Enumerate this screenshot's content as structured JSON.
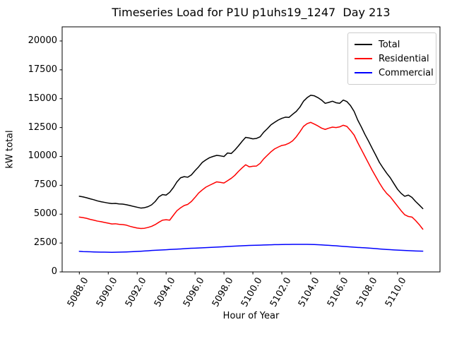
{
  "chart_data": {
    "type": "line",
    "title": "Timeseries Load for P1U p1uhs19_1247  Day 213",
    "xlabel": "Hour of Year",
    "ylabel": "kW total",
    "grid": false,
    "legend_position": "upper right",
    "xlim": [
      5086.8125,
      5112.9375
    ],
    "ylim": [
      0,
      21223
    ],
    "x_ticks": [
      5088,
      5090,
      5092,
      5094,
      5096,
      5098,
      5100,
      5102,
      5104,
      5106,
      5108,
      5110
    ],
    "x_tick_labels": [
      "5088.0",
      "5090.0",
      "5092.0",
      "5094.0",
      "5096.0",
      "5098.0",
      "5100.0",
      "5102.0",
      "5104.0",
      "5106.0",
      "5108.0",
      "5110.0"
    ],
    "y_ticks": [
      0,
      2500,
      5000,
      7500,
      10000,
      12500,
      15000,
      17500,
      20000
    ],
    "y_tick_labels": [
      "0",
      "2500",
      "5000",
      "7500",
      "10000",
      "12500",
      "15000",
      "17500",
      "20000"
    ],
    "x_start": 5088.0,
    "x_step": 0.25,
    "x_end": 5111.75,
    "series": [
      {
        "name": "Total",
        "color": "#000000",
        "values": [
          6550,
          6500,
          6420,
          6330,
          6250,
          6150,
          6080,
          6020,
          5960,
          5920,
          5930,
          5890,
          5870,
          5820,
          5750,
          5670,
          5600,
          5530,
          5560,
          5650,
          5810,
          6100,
          6500,
          6700,
          6650,
          6900,
          7300,
          7800,
          8150,
          8250,
          8200,
          8400,
          8770,
          9100,
          9480,
          9700,
          9890,
          10000,
          10090,
          10050,
          9990,
          10300,
          10250,
          10550,
          10910,
          11300,
          11650,
          11600,
          11520,
          11560,
          11700,
          12100,
          12400,
          12740,
          12950,
          13150,
          13300,
          13400,
          13380,
          13650,
          13900,
          14270,
          14780,
          15090,
          15300,
          15250,
          15090,
          14880,
          14600,
          14680,
          14780,
          14650,
          14600,
          14880,
          14750,
          14400,
          13900,
          13150,
          12550,
          11900,
          11320,
          10700,
          10100,
          9480,
          9000,
          8550,
          8150,
          7650,
          7160,
          6800,
          6550,
          6650,
          6450,
          6100,
          5800,
          5480
        ]
      },
      {
        "name": "Residential",
        "color": "#ff0000",
        "values": [
          4750,
          4700,
          4640,
          4550,
          4480,
          4400,
          4350,
          4280,
          4220,
          4150,
          4170,
          4120,
          4100,
          4050,
          3950,
          3870,
          3800,
          3760,
          3780,
          3850,
          3950,
          4100,
          4300,
          4480,
          4520,
          4480,
          4900,
          5300,
          5550,
          5750,
          5850,
          6100,
          6450,
          6830,
          7100,
          7340,
          7500,
          7650,
          7800,
          7750,
          7700,
          7900,
          8100,
          8360,
          8700,
          9000,
          9280,
          9100,
          9150,
          9170,
          9400,
          9790,
          10100,
          10400,
          10650,
          10810,
          10950,
          11010,
          11150,
          11350,
          11700,
          12130,
          12600,
          12840,
          12950,
          12800,
          12640,
          12450,
          12340,
          12450,
          12540,
          12500,
          12560,
          12700,
          12600,
          12250,
          11850,
          11200,
          10600,
          10000,
          9400,
          8800,
          8250,
          7700,
          7200,
          6800,
          6500,
          6100,
          5700,
          5300,
          4950,
          4800,
          4750,
          4450,
          4100,
          3700
        ]
      },
      {
        "name": "Commercial",
        "color": "#0000ff",
        "values": [
          1780,
          1760,
          1750,
          1740,
          1730,
          1720,
          1715,
          1710,
          1705,
          1700,
          1705,
          1710,
          1720,
          1730,
          1740,
          1755,
          1770,
          1790,
          1810,
          1830,
          1855,
          1870,
          1885,
          1900,
          1920,
          1940,
          1955,
          1970,
          1990,
          2010,
          2030,
          2045,
          2060,
          2075,
          2090,
          2105,
          2120,
          2135,
          2150,
          2165,
          2180,
          2200,
          2215,
          2230,
          2245,
          2260,
          2275,
          2290,
          2300,
          2310,
          2320,
          2330,
          2340,
          2350,
          2360,
          2365,
          2370,
          2375,
          2380,
          2382,
          2385,
          2386,
          2388,
          2385,
          2380,
          2370,
          2355,
          2340,
          2320,
          2300,
          2280,
          2260,
          2235,
          2210,
          2185,
          2160,
          2140,
          2120,
          2105,
          2085,
          2065,
          2040,
          2015,
          1990,
          1965,
          1945,
          1925,
          1905,
          1885,
          1870,
          1855,
          1840,
          1825,
          1815,
          1805,
          1800
        ]
      }
    ],
    "legend": {
      "entries": [
        {
          "label": "Total",
          "color": "#000000"
        },
        {
          "label": "Residential",
          "color": "#ff0000"
        },
        {
          "label": "Commercial",
          "color": "#0000ff"
        }
      ]
    }
  }
}
